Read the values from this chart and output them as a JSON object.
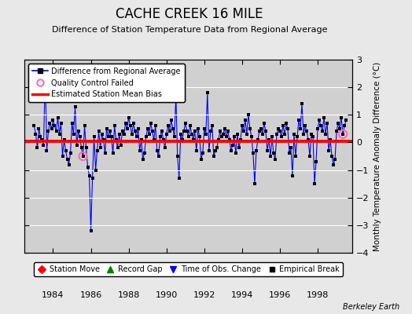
{
  "title": "CACHE CREEK 16 MILE",
  "subtitle": "Difference of Station Temperature Data from Regional Average",
  "ylabel": "Monthly Temperature Anomaly Difference (°C)",
  "xlabel_note": "Berkeley Earth",
  "ylim": [
    -4,
    3
  ],
  "yticks": [
    -4,
    -3,
    -2,
    -1,
    0,
    1,
    2,
    3
  ],
  "xlim": [
    1982.5,
    1999.83
  ],
  "xticks": [
    1984,
    1986,
    1988,
    1990,
    1992,
    1994,
    1996,
    1998
  ],
  "mean_bias": 0.05,
  "line_color": "#0000FF",
  "bias_color": "#FF0000",
  "dot_color": "#000000",
  "qc_fail_color": "#FF69B4",
  "bg_color": "#E8E8E8",
  "plot_bg_color": "#D0D0D0",
  "grid_color": "#FFFFFF",
  "times": [
    1983.0,
    1983.083,
    1983.167,
    1983.25,
    1983.333,
    1983.417,
    1983.5,
    1983.583,
    1983.667,
    1983.75,
    1983.833,
    1983.917,
    1984.0,
    1984.083,
    1984.167,
    1984.25,
    1984.333,
    1984.417,
    1984.5,
    1984.583,
    1984.667,
    1984.75,
    1984.833,
    1984.917,
    1985.0,
    1985.083,
    1985.167,
    1985.25,
    1985.333,
    1985.417,
    1985.5,
    1985.583,
    1985.667,
    1985.75,
    1985.833,
    1985.917,
    1986.0,
    1986.083,
    1986.167,
    1986.25,
    1986.333,
    1986.417,
    1986.5,
    1986.583,
    1986.667,
    1986.75,
    1986.833,
    1986.917,
    1987.0,
    1987.083,
    1987.167,
    1987.25,
    1987.333,
    1987.417,
    1987.5,
    1987.583,
    1987.667,
    1987.75,
    1987.833,
    1987.917,
    1988.0,
    1988.083,
    1988.167,
    1988.25,
    1988.333,
    1988.417,
    1988.5,
    1988.583,
    1988.667,
    1988.75,
    1988.833,
    1988.917,
    1989.0,
    1989.083,
    1989.167,
    1989.25,
    1989.333,
    1989.417,
    1989.5,
    1989.583,
    1989.667,
    1989.75,
    1989.833,
    1989.917,
    1990.0,
    1990.083,
    1990.167,
    1990.25,
    1990.333,
    1990.417,
    1990.5,
    1990.583,
    1990.667,
    1990.75,
    1990.833,
    1990.917,
    1991.0,
    1991.083,
    1991.167,
    1991.25,
    1991.333,
    1991.417,
    1991.5,
    1991.583,
    1991.667,
    1991.75,
    1991.833,
    1991.917,
    1992.0,
    1992.083,
    1992.167,
    1992.25,
    1992.333,
    1992.417,
    1992.5,
    1992.583,
    1992.667,
    1992.75,
    1992.833,
    1992.917,
    1993.0,
    1993.083,
    1993.167,
    1993.25,
    1993.333,
    1993.417,
    1993.5,
    1993.583,
    1993.667,
    1993.75,
    1993.833,
    1993.917,
    1994.0,
    1994.083,
    1994.167,
    1994.25,
    1994.333,
    1994.417,
    1994.5,
    1994.583,
    1994.667,
    1994.75,
    1994.833,
    1994.917,
    1995.0,
    1995.083,
    1995.167,
    1995.25,
    1995.333,
    1995.417,
    1995.5,
    1995.583,
    1995.667,
    1995.75,
    1995.833,
    1995.917,
    1996.0,
    1996.083,
    1996.167,
    1996.25,
    1996.333,
    1996.417,
    1996.5,
    1996.583,
    1996.667,
    1996.75,
    1996.833,
    1996.917,
    1997.0,
    1997.083,
    1997.167,
    1997.25,
    1997.333,
    1997.417,
    1997.5,
    1997.583,
    1997.667,
    1997.75,
    1997.833,
    1997.917,
    1998.0,
    1998.083,
    1998.167,
    1998.25,
    1998.333,
    1998.417,
    1998.5,
    1998.583,
    1998.667,
    1998.75,
    1998.833,
    1998.917,
    1999.0,
    1999.083,
    1999.167,
    1999.25,
    1999.333,
    1999.417,
    1999.5
  ],
  "values": [
    0.6,
    0.3,
    -0.2,
    0.5,
    0.2,
    0.1,
    -0.1,
    2.6,
    -0.3,
    0.4,
    0.7,
    0.5,
    0.8,
    0.6,
    0.4,
    0.9,
    0.3,
    0.7,
    -0.5,
    0.1,
    -0.3,
    -0.6,
    -0.8,
    -0.4,
    0.7,
    0.3,
    1.3,
    -0.1,
    0.4,
    0.2,
    -0.2,
    -0.5,
    0.6,
    -0.2,
    -0.9,
    -1.2,
    -3.2,
    -1.3,
    0.2,
    -1.0,
    -0.3,
    0.4,
    -0.2,
    0.3,
    0.1,
    -0.4,
    0.5,
    0.2,
    0.4,
    0.2,
    -0.4,
    0.6,
    0.1,
    -0.2,
    0.3,
    -0.1,
    0.4,
    0.3,
    0.7,
    0.5,
    0.9,
    0.6,
    0.3,
    0.7,
    0.4,
    0.2,
    0.5,
    -0.3,
    0.1,
    -0.6,
    -0.4,
    0.2,
    0.5,
    0.3,
    0.7,
    0.4,
    0.1,
    0.6,
    -0.3,
    -0.5,
    0.2,
    0.4,
    0.1,
    -0.2,
    0.3,
    0.6,
    0.4,
    0.8,
    0.5,
    0.2,
    1.7,
    -0.5,
    -1.3,
    0.3,
    0.1,
    0.4,
    0.7,
    0.4,
    0.2,
    0.6,
    0.3,
    0.1,
    0.4,
    -0.3,
    0.5,
    0.2,
    -0.6,
    -0.4,
    0.5,
    0.3,
    1.8,
    -0.3,
    0.4,
    0.6,
    -0.5,
    -0.3,
    -0.2,
    0.1,
    0.4,
    0.2,
    0.3,
    0.5,
    0.2,
    0.4,
    0.1,
    -0.3,
    -0.1,
    0.2,
    -0.4,
    0.3,
    -0.2,
    0.1,
    0.6,
    0.4,
    0.8,
    0.3,
    1.0,
    0.5,
    0.2,
    -0.4,
    -1.5,
    -0.3,
    0.1,
    0.4,
    0.5,
    0.3,
    0.7,
    0.4,
    -0.3,
    0.1,
    -0.5,
    0.2,
    -0.4,
    -0.6,
    0.3,
    0.5,
    0.4,
    0.2,
    0.6,
    0.3,
    0.7,
    0.5,
    -0.4,
    -0.2,
    -1.2,
    0.3,
    -0.5,
    0.2,
    0.8,
    0.5,
    1.4,
    0.3,
    0.6,
    0.4,
    0.1,
    -0.5,
    0.3,
    0.2,
    -1.5,
    -0.7,
    0.5,
    0.8,
    0.6,
    0.4,
    0.9,
    0.3,
    0.7,
    -0.3,
    0.1,
    -0.5,
    -0.8,
    -0.6,
    0.4,
    0.7,
    0.5,
    0.9,
    0.3,
    0.6,
    0.8
  ],
  "qc_fail_indices": [
    31,
    196
  ],
  "legend1_entries": [
    {
      "label": "Difference from Regional Average",
      "color": "#0000FF",
      "type": "line_dot"
    },
    {
      "label": "Quality Control Failed",
      "color": "#FF69B4",
      "type": "circle_open"
    },
    {
      "label": "Estimated Station Mean Bias",
      "color": "#FF0000",
      "type": "line"
    }
  ],
  "legend2_entries": [
    {
      "label": "Station Move",
      "color": "#FF0000",
      "type": "diamond"
    },
    {
      "label": "Record Gap",
      "color": "#008000",
      "type": "triangle_up"
    },
    {
      "label": "Time of Obs. Change",
      "color": "#0000FF",
      "type": "triangle_down"
    },
    {
      "label": "Empirical Break",
      "color": "#000000",
      "type": "square"
    }
  ]
}
